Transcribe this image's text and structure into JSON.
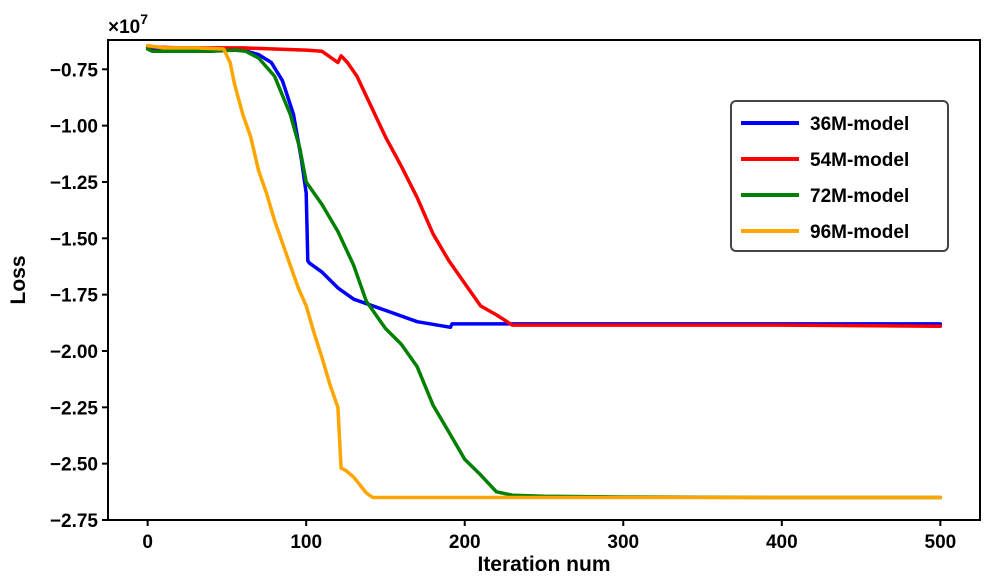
{
  "chart_data": {
    "type": "line",
    "xlabel": "Iteration num",
    "ylabel": "Loss",
    "y_offset_label": "×10",
    "y_offset_exponent": "7",
    "xlim": [
      -25,
      525
    ],
    "ylim": [
      -2.75,
      -0.62
    ],
    "x_ticks": [
      0,
      100,
      200,
      300,
      400,
      500
    ],
    "x_tick_labels": [
      "0",
      "100",
      "200",
      "300",
      "400",
      "500"
    ],
    "y_ticks": [
      -0.75,
      -1.0,
      -1.25,
      -1.5,
      -1.75,
      -2.0,
      -2.25,
      -2.5,
      -2.75
    ],
    "y_tick_labels": [
      "−0.75",
      "−1.00",
      "−1.25",
      "−1.50",
      "−1.75",
      "−2.00",
      "−2.25",
      "−2.50",
      "−2.75"
    ],
    "grid": false,
    "legend_position": "upper-right",
    "series": [
      {
        "name": "36M-model",
        "color": "#0000ff",
        "points": [
          [
            0,
            -0.655
          ],
          [
            20,
            -0.66
          ],
          [
            40,
            -0.66
          ],
          [
            50,
            -0.665
          ],
          [
            60,
            -0.665
          ],
          [
            70,
            -0.685
          ],
          [
            78,
            -0.72
          ],
          [
            85,
            -0.8
          ],
          [
            92,
            -0.95
          ],
          [
            97,
            -1.15
          ],
          [
            100,
            -1.3
          ],
          [
            101,
            -1.6
          ],
          [
            102,
            -1.61
          ],
          [
            110,
            -1.65
          ],
          [
            120,
            -1.72
          ],
          [
            130,
            -1.77
          ],
          [
            150,
            -1.82
          ],
          [
            170,
            -1.87
          ],
          [
            191,
            -1.895
          ],
          [
            192,
            -1.88
          ],
          [
            200,
            -1.88
          ],
          [
            230,
            -1.88
          ],
          [
            300,
            -1.88
          ],
          [
            400,
            -1.88
          ],
          [
            500,
            -1.88
          ]
        ]
      },
      {
        "name": "54M-model",
        "color": "#ff0000",
        "points": [
          [
            0,
            -0.65
          ],
          [
            20,
            -0.655
          ],
          [
            40,
            -0.655
          ],
          [
            60,
            -0.655
          ],
          [
            80,
            -0.66
          ],
          [
            100,
            -0.665
          ],
          [
            110,
            -0.67
          ],
          [
            116,
            -0.7
          ],
          [
            120,
            -0.72
          ],
          [
            122,
            -0.69
          ],
          [
            126,
            -0.72
          ],
          [
            132,
            -0.78
          ],
          [
            140,
            -0.9
          ],
          [
            150,
            -1.05
          ],
          [
            160,
            -1.18
          ],
          [
            170,
            -1.32
          ],
          [
            180,
            -1.48
          ],
          [
            190,
            -1.6
          ],
          [
            200,
            -1.7
          ],
          [
            210,
            -1.8
          ],
          [
            220,
            -1.84
          ],
          [
            230,
            -1.885
          ],
          [
            240,
            -1.885
          ],
          [
            300,
            -1.885
          ],
          [
            400,
            -1.885
          ],
          [
            500,
            -1.89
          ]
        ]
      },
      {
        "name": "72M-model",
        "color": "#008000",
        "points": [
          [
            0,
            -0.66
          ],
          [
            3,
            -0.67
          ],
          [
            20,
            -0.67
          ],
          [
            40,
            -0.67
          ],
          [
            55,
            -0.665
          ],
          [
            62,
            -0.67
          ],
          [
            70,
            -0.7
          ],
          [
            80,
            -0.78
          ],
          [
            90,
            -0.95
          ],
          [
            96,
            -1.1
          ],
          [
            100,
            -1.25
          ],
          [
            110,
            -1.35
          ],
          [
            120,
            -1.47
          ],
          [
            130,
            -1.62
          ],
          [
            138,
            -1.78
          ],
          [
            150,
            -1.9
          ],
          [
            160,
            -1.97
          ],
          [
            170,
            -2.07
          ],
          [
            180,
            -2.24
          ],
          [
            190,
            -2.36
          ],
          [
            200,
            -2.48
          ],
          [
            210,
            -2.55
          ],
          [
            220,
            -2.625
          ],
          [
            230,
            -2.64
          ],
          [
            250,
            -2.645
          ],
          [
            300,
            -2.648
          ],
          [
            400,
            -2.65
          ],
          [
            500,
            -2.65
          ]
        ]
      },
      {
        "name": "96M-model",
        "color": "#ffa500",
        "points": [
          [
            0,
            -0.645
          ],
          [
            10,
            -0.655
          ],
          [
            30,
            -0.655
          ],
          [
            48,
            -0.66
          ],
          [
            52,
            -0.72
          ],
          [
            55,
            -0.82
          ],
          [
            60,
            -0.95
          ],
          [
            65,
            -1.05
          ],
          [
            70,
            -1.2
          ],
          [
            75,
            -1.3
          ],
          [
            80,
            -1.42
          ],
          [
            85,
            -1.52
          ],
          [
            90,
            -1.62
          ],
          [
            95,
            -1.72
          ],
          [
            100,
            -1.8
          ],
          [
            105,
            -1.92
          ],
          [
            110,
            -2.03
          ],
          [
            115,
            -2.15
          ],
          [
            120,
            -2.25
          ],
          [
            122,
            -2.52
          ],
          [
            125,
            -2.53
          ],
          [
            130,
            -2.56
          ],
          [
            138,
            -2.63
          ],
          [
            142,
            -2.65
          ],
          [
            160,
            -2.65
          ],
          [
            300,
            -2.65
          ],
          [
            500,
            -2.65
          ]
        ]
      }
    ]
  }
}
